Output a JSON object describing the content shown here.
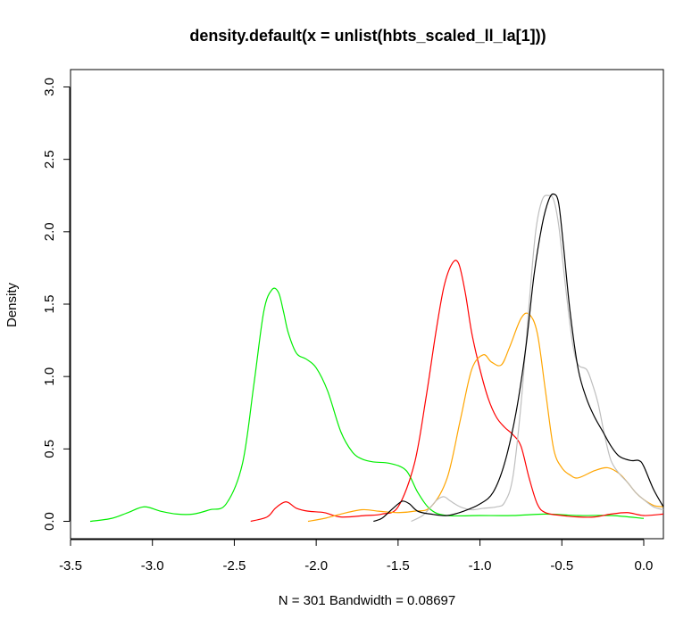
{
  "chart_data": {
    "type": "line",
    "title": "density.default(x = unlist(hbts_scaled_ll_la[1]))",
    "xlabel": "N = 301   Bandwidth = 0.08697",
    "ylabel": "Density",
    "xlim": [
      -3.5,
      0.12
    ],
    "ylim": [
      -0.12,
      3.12
    ],
    "xticks": [
      -3.5,
      -3.0,
      -2.5,
      -2.0,
      -1.5,
      -1.0,
      -0.5,
      0.0
    ],
    "xtick_labels": [
      "-3.5",
      "-3.0",
      "-2.5",
      "-2.0",
      "-1.5",
      "-1.0",
      "-0.5",
      "0.0"
    ],
    "yticks": [
      0.0,
      0.5,
      1.0,
      1.5,
      2.0,
      2.5,
      3.0
    ],
    "ytick_labels": [
      "0.0",
      "0.5",
      "1.0",
      "1.5",
      "2.0",
      "2.5",
      "3.0"
    ],
    "grid": false,
    "legend": "none",
    "series": [
      {
        "color": "#00ee00",
        "x": [
          -3.38,
          -3.25,
          -3.15,
          -3.05,
          -2.95,
          -2.85,
          -2.75,
          -2.65,
          -2.55,
          -2.45,
          -2.38,
          -2.32,
          -2.27,
          -2.23,
          -2.2,
          -2.17,
          -2.12,
          -2.06,
          -2.0,
          -1.93,
          -1.85,
          -1.78,
          -1.72,
          -1.65,
          -1.55,
          -1.45,
          -1.38,
          -1.3,
          -1.2,
          -1.0,
          -0.8,
          -0.6,
          -0.4,
          -0.2,
          0.0
        ],
        "y": [
          0.0,
          0.02,
          0.06,
          0.1,
          0.07,
          0.05,
          0.05,
          0.08,
          0.12,
          0.4,
          0.95,
          1.45,
          1.6,
          1.58,
          1.45,
          1.3,
          1.16,
          1.12,
          1.06,
          0.9,
          0.62,
          0.48,
          0.43,
          0.41,
          0.4,
          0.35,
          0.2,
          0.08,
          0.04,
          0.04,
          0.04,
          0.05,
          0.04,
          0.04,
          0.02
        ]
      },
      {
        "color": "#ff0000",
        "x": [
          -2.4,
          -2.3,
          -2.25,
          -2.2,
          -2.17,
          -2.12,
          -2.05,
          -1.95,
          -1.85,
          -1.7,
          -1.6,
          -1.5,
          -1.4,
          -1.33,
          -1.27,
          -1.22,
          -1.17,
          -1.13,
          -1.09,
          -1.05,
          -1.0,
          -0.95,
          -0.9,
          -0.85,
          -0.8,
          -0.75,
          -0.7,
          -0.65,
          -0.6,
          -0.5,
          -0.4,
          -0.3,
          -0.2,
          -0.1,
          0.0,
          0.12
        ],
        "y": [
          0.0,
          0.03,
          0.09,
          0.13,
          0.13,
          0.09,
          0.07,
          0.06,
          0.03,
          0.04,
          0.05,
          0.1,
          0.4,
          0.85,
          1.3,
          1.62,
          1.78,
          1.78,
          1.58,
          1.3,
          1.05,
          0.85,
          0.72,
          0.65,
          0.6,
          0.52,
          0.3,
          0.12,
          0.06,
          0.04,
          0.03,
          0.03,
          0.05,
          0.06,
          0.04,
          0.05
        ]
      },
      {
        "color": "#ffa500",
        "x": [
          -2.05,
          -1.95,
          -1.85,
          -1.72,
          -1.62,
          -1.5,
          -1.4,
          -1.3,
          -1.2,
          -1.12,
          -1.05,
          -0.98,
          -0.93,
          -0.87,
          -0.82,
          -0.75,
          -0.7,
          -0.65,
          -0.6,
          -0.55,
          -0.5,
          -0.45,
          -0.4,
          -0.3,
          -0.22,
          -0.15,
          -0.1,
          -0.05,
          0.0,
          0.06,
          0.12
        ],
        "y": [
          0.0,
          0.02,
          0.05,
          0.08,
          0.07,
          0.06,
          0.07,
          0.1,
          0.3,
          0.7,
          1.05,
          1.15,
          1.1,
          1.08,
          1.2,
          1.4,
          1.43,
          1.3,
          0.9,
          0.5,
          0.37,
          0.32,
          0.3,
          0.35,
          0.37,
          0.33,
          0.27,
          0.2,
          0.15,
          0.11,
          0.1
        ]
      },
      {
        "color": "#bebebe",
        "x": [
          -1.42,
          -1.35,
          -1.3,
          -1.26,
          -1.22,
          -1.18,
          -1.12,
          -1.05,
          -0.98,
          -0.9,
          -0.85,
          -0.8,
          -0.75,
          -0.7,
          -0.66,
          -0.62,
          -0.58,
          -0.55,
          -0.52,
          -0.49,
          -0.46,
          -0.43,
          -0.4,
          -0.35,
          -0.32,
          -0.28,
          -0.24,
          -0.2,
          -0.15,
          -0.1,
          -0.05,
          0.0,
          0.06,
          0.12
        ],
        "y": [
          0.0,
          0.04,
          0.1,
          0.15,
          0.17,
          0.14,
          0.1,
          0.08,
          0.09,
          0.1,
          0.13,
          0.3,
          0.8,
          1.5,
          2.0,
          2.22,
          2.25,
          2.22,
          2.05,
          1.75,
          1.45,
          1.2,
          1.08,
          1.05,
          0.97,
          0.82,
          0.6,
          0.42,
          0.33,
          0.27,
          0.2,
          0.15,
          0.1,
          0.08
        ]
      },
      {
        "color": "#000000",
        "x": [
          -1.65,
          -1.6,
          -1.55,
          -1.5,
          -1.47,
          -1.43,
          -1.38,
          -1.3,
          -1.2,
          -1.1,
          -1.0,
          -0.92,
          -0.85,
          -0.78,
          -0.72,
          -0.67,
          -0.62,
          -0.58,
          -0.55,
          -0.52,
          -0.49,
          -0.45,
          -0.4,
          -0.35,
          -0.3,
          -0.25,
          -0.2,
          -0.15,
          -0.08,
          -0.03,
          0.0,
          0.06,
          0.12
        ],
        "y": [
          0.0,
          0.02,
          0.07,
          0.12,
          0.14,
          0.12,
          0.07,
          0.05,
          0.04,
          0.07,
          0.12,
          0.2,
          0.4,
          0.75,
          1.2,
          1.7,
          2.05,
          2.22,
          2.26,
          2.2,
          1.9,
          1.45,
          1.05,
          0.85,
          0.72,
          0.62,
          0.52,
          0.45,
          0.42,
          0.42,
          0.38,
          0.22,
          0.1
        ]
      }
    ]
  }
}
